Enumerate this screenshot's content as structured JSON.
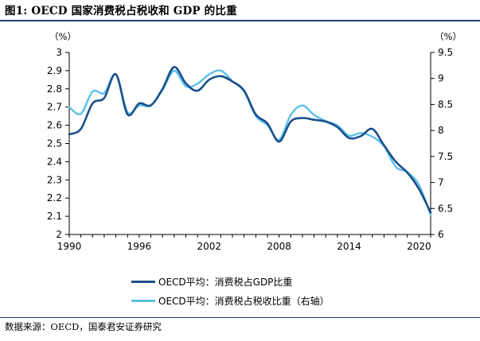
{
  "figure": {
    "title": "图1:  OECD 国家消费税占税收和 GDP 的比重",
    "source": "数据来源：OECD，国泰君安证券研究"
  },
  "chart_data": {
    "type": "line",
    "title": "OECD 国家消费税占税收和 GDP 的比重",
    "x_range": [
      1990,
      2021
    ],
    "x_ticks": [
      "1990",
      "1996",
      "2002",
      "2008",
      "2014",
      "2020"
    ],
    "y_left": {
      "unit": "（%）",
      "range": [
        2,
        3
      ],
      "ticks": [
        "2",
        "2.1",
        "2.2",
        "2.3",
        "2.4",
        "2.5",
        "2.6",
        "2.7",
        "2.8",
        "2.9",
        "3"
      ]
    },
    "y_right": {
      "unit": "（%）",
      "range": [
        6,
        9.5
      ],
      "ticks": [
        "6",
        "6.5",
        "7",
        "7.5",
        "8",
        "8.5",
        "9",
        "9.5"
      ]
    },
    "series": [
      {
        "name": "OECD平均：消费税占GDP比重",
        "axis": "left",
        "color": "#1b4f8c",
        "x": [
          1990,
          1991,
          1992,
          1993,
          1994,
          1995,
          1996,
          1997,
          1998,
          1999,
          2000,
          2001,
          2002,
          2003,
          2004,
          2005,
          2006,
          2007,
          2008,
          2009,
          2010,
          2011,
          2012,
          2013,
          2014,
          2015,
          2016,
          2017,
          2018,
          2019,
          2020,
          2021
        ],
        "values": [
          2.55,
          2.58,
          2.72,
          2.75,
          2.88,
          2.66,
          2.72,
          2.71,
          2.8,
          2.92,
          2.83,
          2.79,
          2.85,
          2.87,
          2.84,
          2.79,
          2.66,
          2.61,
          2.51,
          2.62,
          2.64,
          2.63,
          2.62,
          2.59,
          2.53,
          2.54,
          2.58,
          2.49,
          2.4,
          2.34,
          2.25,
          2.12
        ]
      },
      {
        "name": "OECD平均：消费税占税收比重（右轴）",
        "axis": "right",
        "color": "#5bc0eb",
        "x": [
          1990,
          1991,
          1992,
          1993,
          1994,
          1995,
          1996,
          1997,
          1998,
          1999,
          2000,
          2001,
          2002,
          2003,
          2004,
          2005,
          2006,
          2007,
          2008,
          2009,
          2010,
          2011,
          2012,
          2013,
          2014,
          2015,
          2016,
          2017,
          2018,
          2019,
          2020,
          2021
        ],
        "values": [
          8.45,
          8.32,
          8.75,
          8.72,
          9.08,
          8.35,
          8.48,
          8.48,
          8.78,
          9.15,
          8.85,
          8.9,
          9.08,
          9.15,
          8.95,
          8.75,
          8.28,
          8.1,
          7.82,
          8.3,
          8.48,
          8.3,
          8.18,
          8.1,
          7.9,
          7.95,
          7.88,
          7.7,
          7.3,
          7.2,
          6.95,
          6.38
        ]
      }
    ],
    "legend": [
      "OECD平均：消费税占GDP比重",
      "OECD平均：消费税占税收比重（右轴）"
    ]
  }
}
